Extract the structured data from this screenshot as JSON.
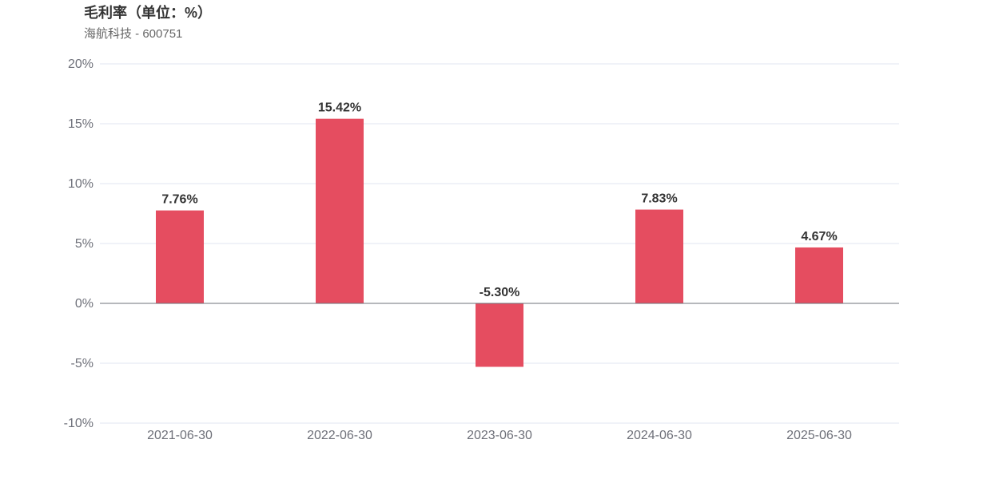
{
  "title": "毛利率（单位：%）",
  "subtitle": "海航科技 - 600751",
  "colors": {
    "bar": "#e54d60",
    "grid": "#e0e6f1",
    "axis": "#6e7079",
    "label": "#333333"
  },
  "chart_data": {
    "type": "bar",
    "title": "毛利率（单位：%）",
    "subtitle": "海航科技 - 600751",
    "categories": [
      "2021-06-30",
      "2022-06-30",
      "2023-06-30",
      "2024-06-30",
      "2025-06-30"
    ],
    "values": [
      7.76,
      15.42,
      -5.3,
      7.83,
      4.67
    ],
    "data_labels": [
      "7.76%",
      "15.42%",
      "-5.30%",
      "7.83%",
      "4.67%"
    ],
    "y_ticks": [
      20,
      15,
      10,
      5,
      0,
      -5,
      -10
    ],
    "y_tick_labels": [
      "20%",
      "15%",
      "10%",
      "5%",
      "0%",
      "-5%",
      "-10%"
    ],
    "ylim": [
      -10,
      20
    ],
    "xlabel": "",
    "ylabel": "",
    "grid": true
  }
}
